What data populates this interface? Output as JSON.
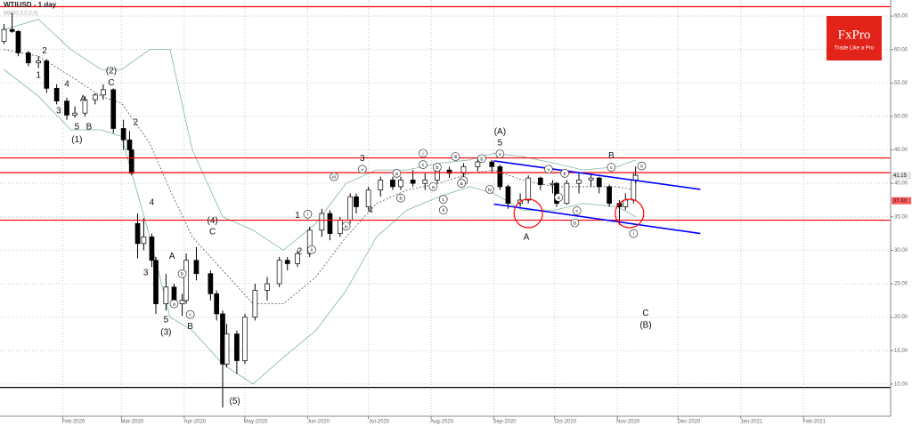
{
  "chart_data": {
    "type": "candlestick",
    "title": "WTIUSD - 1 day",
    "subtitle": "BB(20,2.0,2.0)",
    "logo": {
      "name": "FxPro",
      "tagline": "Trade Like a Pro",
      "color": "#e2231a"
    },
    "x": [
      "2020-01-03",
      "2020-01-07",
      "2020-01-10",
      "2020-01-15",
      "2020-01-20",
      "2020-01-24",
      "2020-01-29",
      "2020-02-03",
      "2020-02-07",
      "2020-02-12",
      "2020-02-17",
      "2020-02-21",
      "2020-02-26",
      "2020-03-02",
      "2020-03-05",
      "2020-03-06",
      "2020-03-09",
      "2020-03-12",
      "2020-03-16",
      "2020-03-18",
      "2020-03-23",
      "2020-03-27",
      "2020-03-31",
      "2020-04-02",
      "2020-04-07",
      "2020-04-14",
      "2020-04-17",
      "2020-04-20",
      "2020-04-22",
      "2020-04-27",
      "2020-05-01",
      "2020-05-06",
      "2020-05-12",
      "2020-05-18",
      "2020-05-22",
      "2020-05-27",
      "2020-06-02",
      "2020-06-08",
      "2020-06-12",
      "2020-06-17",
      "2020-06-22",
      "2020-06-25",
      "2020-07-01",
      "2020-07-07",
      "2020-07-13",
      "2020-07-17",
      "2020-07-23",
      "2020-07-29",
      "2020-08-04",
      "2020-08-10",
      "2020-08-17",
      "2020-08-24",
      "2020-08-31",
      "2020-09-04",
      "2020-09-08",
      "2020-09-14",
      "2020-09-18",
      "2020-09-24",
      "2020-09-30",
      "2020-10-02",
      "2020-10-07",
      "2020-10-13",
      "2020-10-19",
      "2020-10-23",
      "2020-10-28",
      "2020-11-02",
      "2020-11-05",
      "2020-11-09",
      "2020-11-10"
    ],
    "open": [
      61.2,
      63.0,
      62.7,
      59.5,
      58.0,
      58.3,
      54.2,
      52.3,
      50.2,
      50.5,
      52.5,
      53.2,
      54.0,
      48.2,
      46.5,
      45.0,
      34.0,
      31.0,
      32.0,
      28.5,
      22.0,
      24.5,
      22.0,
      22.5,
      28.5,
      26.5,
      23.5,
      20.5,
      13.0,
      17.5,
      13.5,
      20.0,
      24.0,
      25.0,
      28.5,
      28.0,
      29.5,
      33.0,
      35.5,
      32.5,
      34.5,
      38.0,
      36.5,
      39.0,
      40.5,
      39.5,
      40.5,
      40.0,
      40.5,
      42.0,
      41.5,
      42.5,
      43.2,
      42.5,
      39.5,
      37.0,
      37.5,
      40.8,
      39.8,
      40.0,
      37.0,
      40.0,
      40.5,
      40.8,
      39.5,
      37.0,
      36.5,
      37.5,
      40.5
    ],
    "high": [
      63.8,
      65.5,
      62.9,
      59.8,
      59.0,
      58.6,
      54.8,
      52.8,
      51.5,
      53.0,
      53.5,
      54.8,
      54.2,
      49.5,
      47.8,
      45.2,
      35.5,
      34.8,
      32.5,
      29.0,
      26.5,
      25.0,
      23.5,
      29.5,
      30.5,
      27.0,
      24.0,
      21.0,
      19.0,
      18.0,
      20.5,
      25.0,
      26.0,
      29.0,
      29.0,
      30.0,
      33.5,
      36.2,
      36.0,
      35.0,
      38.5,
      38.5,
      39.5,
      41.0,
      41.0,
      41.0,
      42.0,
      41.5,
      42.5,
      42.5,
      43.0,
      43.6,
      43.5,
      42.8,
      39.8,
      38.5,
      41.2,
      41.0,
      40.5,
      40.2,
      40.5,
      41.5,
      41.5,
      41.0,
      39.8,
      37.5,
      38.5,
      41.5,
      42.5
    ],
    "low": [
      60.8,
      62.5,
      59.0,
      57.5,
      57.2,
      53.5,
      51.8,
      49.5,
      49.8,
      50.0,
      51.8,
      52.5,
      47.5,
      45.0,
      44.0,
      41.2,
      28.8,
      30.0,
      27.5,
      20.5,
      21.0,
      21.5,
      20.2,
      22.0,
      25.5,
      22.5,
      19.5,
      6.5,
      12.5,
      11.5,
      13.0,
      19.5,
      22.5,
      24.5,
      27.0,
      27.5,
      29.0,
      32.0,
      31.5,
      32.0,
      34.0,
      35.5,
      36.0,
      38.0,
      39.0,
      39.0,
      39.5,
      39.0,
      40.0,
      40.8,
      41.0,
      41.8,
      41.5,
      39.0,
      36.2,
      36.5,
      37.0,
      39.0,
      38.5,
      36.5,
      36.8,
      38.5,
      39.5,
      38.5,
      36.5,
      33.8,
      36.0,
      37.0,
      40.0
    ],
    "close": [
      63.0,
      62.7,
      59.5,
      58.0,
      58.3,
      54.2,
      52.3,
      50.2,
      50.5,
      52.5,
      53.2,
      54.0,
      48.2,
      46.5,
      45.0,
      41.5,
      31.0,
      32.0,
      28.5,
      22.0,
      24.5,
      22.0,
      22.5,
      28.5,
      26.5,
      23.5,
      20.5,
      13.0,
      17.5,
      13.5,
      20.0,
      24.0,
      25.0,
      28.5,
      28.0,
      29.5,
      33.0,
      35.5,
      32.5,
      34.5,
      38.0,
      36.5,
      39.0,
      40.5,
      39.5,
      40.5,
      40.0,
      40.5,
      42.0,
      41.5,
      42.5,
      43.2,
      42.5,
      39.5,
      37.0,
      37.5,
      40.8,
      39.8,
      40.0,
      37.0,
      40.0,
      40.5,
      40.8,
      39.5,
      37.0,
      36.5,
      37.5,
      40.5,
      41.2
    ],
    "up_color": "#ffffff",
    "down_color": "#000000",
    "bands": {
      "color": "#7fb5a8",
      "mid_color": "#555555",
      "x": [
        "2020-01-03",
        "2020-01-20",
        "2020-02-05",
        "2020-02-20",
        "2020-03-01",
        "2020-03-15",
        "2020-03-25",
        "2020-04-05",
        "2020-04-20",
        "2020-05-05",
        "2020-05-20",
        "2020-06-05",
        "2020-06-20",
        "2020-07-05",
        "2020-07-20",
        "2020-08-05",
        "2020-08-20",
        "2020-09-01",
        "2020-09-15",
        "2020-10-01",
        "2020-10-15",
        "2020-11-01",
        "2020-11-10"
      ],
      "upper": [
        63,
        64.5,
        60,
        57,
        57,
        60,
        60,
        45,
        35,
        33,
        30,
        34,
        40,
        42,
        42,
        43,
        43.5,
        44.5,
        44,
        43,
        42,
        42.5,
        43.5
      ],
      "middle": [
        60,
        59,
        56,
        53,
        52,
        46,
        39,
        32,
        27,
        22,
        22,
        26,
        32,
        37,
        39,
        40,
        41.5,
        42,
        40.5,
        39.5,
        39.5,
        39.5,
        39
      ],
      "lower": [
        57,
        53,
        48,
        48,
        47,
        32,
        20,
        18,
        13,
        10,
        14,
        18,
        24,
        32,
        36,
        38,
        39.5,
        38.5,
        36,
        36,
        37,
        36.5,
        35
      ]
    },
    "levels": [
      {
        "price": 66.4,
        "color": "#ff0000"
      },
      {
        "price": 43.8,
        "color": "#ff0000"
      },
      {
        "price": 41.6,
        "color": "#ff0000"
      },
      {
        "price": 34.5,
        "color": "#ff0000"
      },
      {
        "price": 9.5,
        "color": "#000000"
      }
    ],
    "trendlines": [
      {
        "from": [
          "2020-09-01",
          43.35
        ],
        "to": [
          "2020-12-12",
          39.1
        ],
        "color": "#0000ff"
      },
      {
        "from": [
          "2020-09-01",
          36.9
        ],
        "to": [
          "2020-12-12",
          32.5
        ],
        "color": "#0000ff"
      }
    ],
    "circles": [
      {
        "date": "2020-09-18",
        "price": 35.5,
        "color": "#ff0000"
      },
      {
        "date": "2020-11-07",
        "price": 35.5,
        "color": "#ff0000"
      }
    ],
    "price_labels": [
      {
        "value": 41.15,
        "color": "#e6e6e6"
      },
      {
        "value": 37.4,
        "label": "37.40",
        "color": "#ff5a5a"
      }
    ],
    "annotations": [
      {
        "text": "2",
        "date": "2020-01-23",
        "price": 59.8,
        "circled": false
      },
      {
        "text": "1",
        "date": "2020-01-20",
        "price": 56.1,
        "circled": false
      },
      {
        "text": "4",
        "date": "2020-02-03",
        "price": 54.8,
        "circled": false
      },
      {
        "text": "3",
        "date": "2020-01-30",
        "price": 50.8,
        "circled": false
      },
      {
        "text": "A",
        "date": "2020-02-11",
        "price": 52.6,
        "circled": false
      },
      {
        "text": "5",
        "date": "2020-02-08",
        "price": 48.4,
        "circled": false
      },
      {
        "text": "B",
        "date": "2020-02-14",
        "price": 48.4,
        "circled": false
      },
      {
        "text": "(1)",
        "date": "2020-02-08",
        "price": 46.5,
        "circled": false
      },
      {
        "text": "(2)",
        "date": "2020-02-25",
        "price": 56.8,
        "circled": false
      },
      {
        "text": "C",
        "date": "2020-02-25",
        "price": 55.0,
        "circled": false
      },
      {
        "text": "2",
        "date": "2020-03-08",
        "price": 49.1,
        "circled": false
      },
      {
        "text": "1",
        "date": "2020-03-06",
        "price": 42.4,
        "circled": false
      },
      {
        "text": "4",
        "date": "2020-03-16",
        "price": 37.1,
        "circled": false
      },
      {
        "text": "3",
        "date": "2020-03-13",
        "price": 26.6,
        "circled": false
      },
      {
        "text": "A",
        "date": "2020-03-26",
        "price": 29.1,
        "circled": false
      },
      {
        "text": "b",
        "date": "2020-03-31",
        "price": 26.5,
        "circled": true
      },
      {
        "text": "a",
        "date": "2020-03-27",
        "price": 22.0,
        "circled": true
      },
      {
        "text": "5",
        "date": "2020-03-23",
        "price": 19.6,
        "circled": false
      },
      {
        "text": "(3)",
        "date": "2020-03-23",
        "price": 17.7,
        "circled": false
      },
      {
        "text": "c",
        "date": "2020-04-04",
        "price": 20.4,
        "circled": true
      },
      {
        "text": "B",
        "date": "2020-04-04",
        "price": 18.6,
        "circled": false
      },
      {
        "text": "(4)",
        "date": "2020-04-15",
        "price": 34.4,
        "circled": false
      },
      {
        "text": "C",
        "date": "2020-04-15",
        "price": 32.7,
        "circled": false
      },
      {
        "text": "(5)",
        "date": "2020-04-26",
        "price": 7.4,
        "circled": false
      },
      {
        "text": "1",
        "date": "2020-05-27",
        "price": 35.2,
        "circled": false
      },
      {
        "text": "i",
        "date": "2020-06-01",
        "price": 35.4,
        "circled": true
      },
      {
        "text": "2",
        "date": "2020-05-28",
        "price": 29.8,
        "circled": false
      },
      {
        "text": "ii",
        "date": "2020-06-03",
        "price": 30.1,
        "circled": true
      },
      {
        "text": "iii",
        "date": "2020-06-14",
        "price": 41.0,
        "circled": true
      },
      {
        "text": "3",
        "date": "2020-06-28",
        "price": 43.7,
        "circled": false
      },
      {
        "text": "v",
        "date": "2020-06-28",
        "price": 42.1,
        "circled": true
      },
      {
        "text": "iv",
        "date": "2020-06-20",
        "price": 33.6,
        "circled": true
      },
      {
        "text": "4",
        "date": "2020-07-02",
        "price": 35.9,
        "circled": false
      },
      {
        "text": "a",
        "date": "2020-07-15",
        "price": 41.5,
        "circled": true
      },
      {
        "text": "b",
        "date": "2020-07-17",
        "price": 37.8,
        "circled": true
      },
      {
        "text": "i",
        "date": "2020-07-28",
        "price": 44.5,
        "circled": true
      },
      {
        "text": "c",
        "date": "2020-07-28",
        "price": 42.8,
        "circled": true
      },
      {
        "text": "b",
        "date": "2020-08-04",
        "price": 42.4,
        "circled": true
      },
      {
        "text": "a",
        "date": "2020-08-02",
        "price": 39.5,
        "circled": true
      },
      {
        "text": "c",
        "date": "2020-08-07",
        "price": 37.6,
        "circled": true
      },
      {
        "text": "ii",
        "date": "2020-08-07",
        "price": 36.0,
        "circled": true
      },
      {
        "text": "iii",
        "date": "2020-08-13",
        "price": 44.0,
        "circled": true
      },
      {
        "text": "b",
        "date": "2020-08-26",
        "price": 43.7,
        "circled": true
      },
      {
        "text": "c",
        "date": "2020-08-17",
        "price": 40.4,
        "circled": true
      },
      {
        "text": "a",
        "date": "2020-08-16",
        "price": 40.0,
        "circled": true
      },
      {
        "text": "iv",
        "date": "2020-08-30",
        "price": 39.1,
        "circled": true
      },
      {
        "text": "(A)",
        "date": "2020-09-04",
        "price": 47.7,
        "circled": false
      },
      {
        "text": "5",
        "date": "2020-09-04",
        "price": 46.0,
        "circled": false
      },
      {
        "text": "v",
        "date": "2020-09-04",
        "price": 44.4,
        "circled": true
      },
      {
        "text": "A",
        "date": "2020-09-17",
        "price": 31.9,
        "circled": false
      },
      {
        "text": "v",
        "date": "2020-09-28",
        "price": 42.1,
        "circled": true
      },
      {
        "text": "b",
        "date": "2020-10-06",
        "price": 41.5,
        "circled": true
      },
      {
        "text": "a",
        "date": "2020-10-03",
        "price": 37.9,
        "circled": true
      },
      {
        "text": "c",
        "date": "2020-10-12",
        "price": 35.9,
        "circled": true
      },
      {
        "text": "b",
        "date": "2020-10-11",
        "price": 34.1,
        "circled": true
      },
      {
        "text": "B",
        "date": "2020-10-29",
        "price": 44.1,
        "circled": false
      },
      {
        "text": "c",
        "date": "2020-10-29",
        "price": 42.4,
        "circled": true
      },
      {
        "text": "i",
        "date": "2020-11-09",
        "price": 32.5,
        "circled": true
      },
      {
        "text": "ii",
        "date": "2020-11-13",
        "price": 42.6,
        "circled": true
      },
      {
        "text": "C",
        "date": "2020-11-15",
        "price": 20.6,
        "circled": false
      },
      {
        "text": "(B)",
        "date": "2020-11-15",
        "price": 18.8,
        "circled": false
      }
    ],
    "xlim": [
      "2020-01-01",
      "2021-03-16"
    ],
    "xticks": [
      {
        "value": "2020-02-01",
        "label": "Feb-2020"
      },
      {
        "value": "2020-03-01",
        "label": "Mar-2020"
      },
      {
        "value": "2020-04-01",
        "label": "Apr-2020"
      },
      {
        "value": "2020-05-01",
        "label": "May-2020"
      },
      {
        "value": "2020-06-01",
        "label": "Jun-2020"
      },
      {
        "value": "2020-07-01",
        "label": "Jul-2020"
      },
      {
        "value": "2020-08-01",
        "label": "Aug-2020"
      },
      {
        "value": "2020-09-01",
        "label": "Sep-2020"
      },
      {
        "value": "2020-10-01",
        "label": "Oct-2020"
      },
      {
        "value": "2020-11-01",
        "label": "Nov-2020"
      },
      {
        "value": "2020-12-01",
        "label": "Dec-2020"
      },
      {
        "value": "2021-01-01",
        "label": "Jan-2021"
      },
      {
        "value": "2021-02-01",
        "label": "Feb-2021"
      }
    ],
    "ylim": [
      5.2,
      67.4
    ],
    "yticks": [
      {
        "value": 10,
        "label": "10.00"
      },
      {
        "value": 15,
        "label": "15.00"
      },
      {
        "value": 20,
        "label": "20.00"
      },
      {
        "value": 25,
        "label": "25.00"
      },
      {
        "value": 30,
        "label": "30.00"
      },
      {
        "value": 35,
        "label": "35.00"
      },
      {
        "value": 40,
        "label": "40.00"
      },
      {
        "value": 45,
        "label": "45.00"
      },
      {
        "value": 50,
        "label": "50.00"
      },
      {
        "value": 55,
        "label": "55.00"
      },
      {
        "value": 60,
        "label": "60.00"
      },
      {
        "value": 65,
        "label": "65.00"
      }
    ],
    "grid": true
  }
}
